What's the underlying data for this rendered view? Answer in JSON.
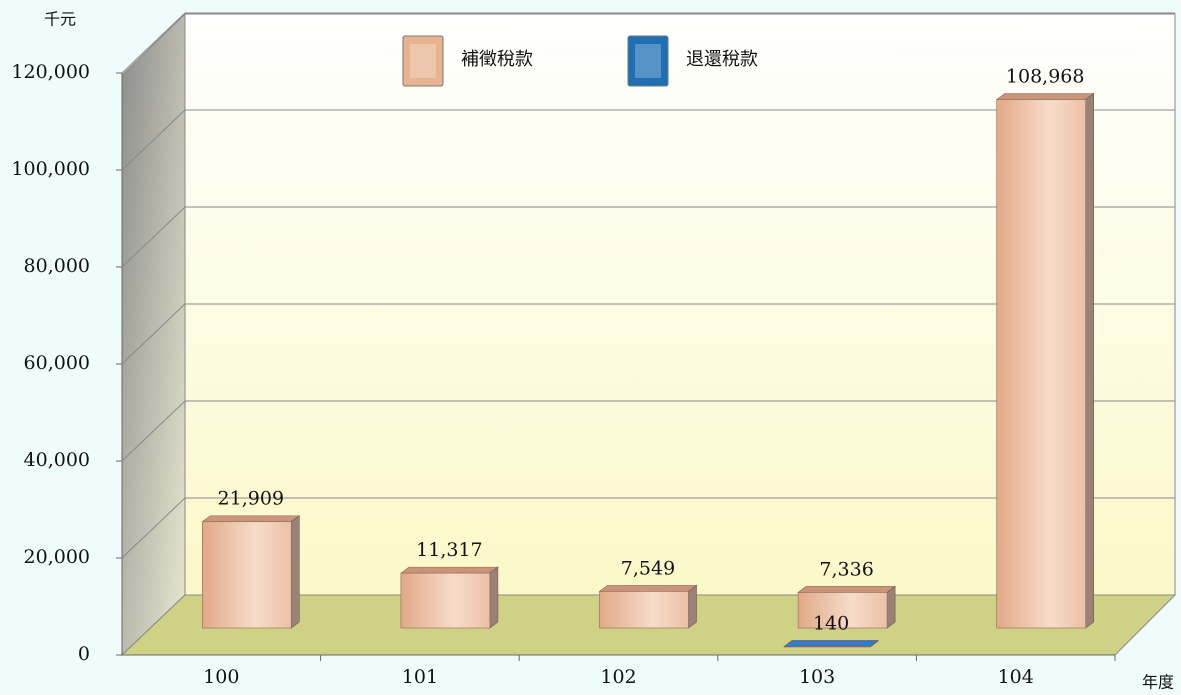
{
  "chart_data": {
    "type": "bar",
    "y_unit": "千元",
    "x_label": "年度",
    "categories": [
      "100",
      "101",
      "102",
      "103",
      "104"
    ],
    "series": [
      {
        "name": "補徵稅款",
        "color": "#e6b48f",
        "values": [
          21909,
          11317,
          7549,
          7336,
          108968
        ],
        "value_labels": [
          "21,909",
          "11,317",
          "7,549",
          "7,336",
          "108,968"
        ]
      },
      {
        "name": "退還稅款",
        "color": "#1f6fb5",
        "values": [
          null,
          null,
          null,
          140,
          null
        ],
        "value_labels": [
          null,
          null,
          null,
          "140",
          null
        ]
      }
    ],
    "ylim": [
      0,
      120000
    ],
    "yticks": [
      0,
      {
        "value": 20000,
        "label": "20,000"
      },
      {
        "value": 40000,
        "label": "40,000"
      },
      {
        "value": 60000,
        "label": "60,000"
      },
      {
        "value": 80000,
        "label": "80,000"
      },
      {
        "value": 100000,
        "label": "100,000"
      },
      {
        "value": 120000,
        "label": "120,000"
      }
    ],
    "grid": true
  }
}
